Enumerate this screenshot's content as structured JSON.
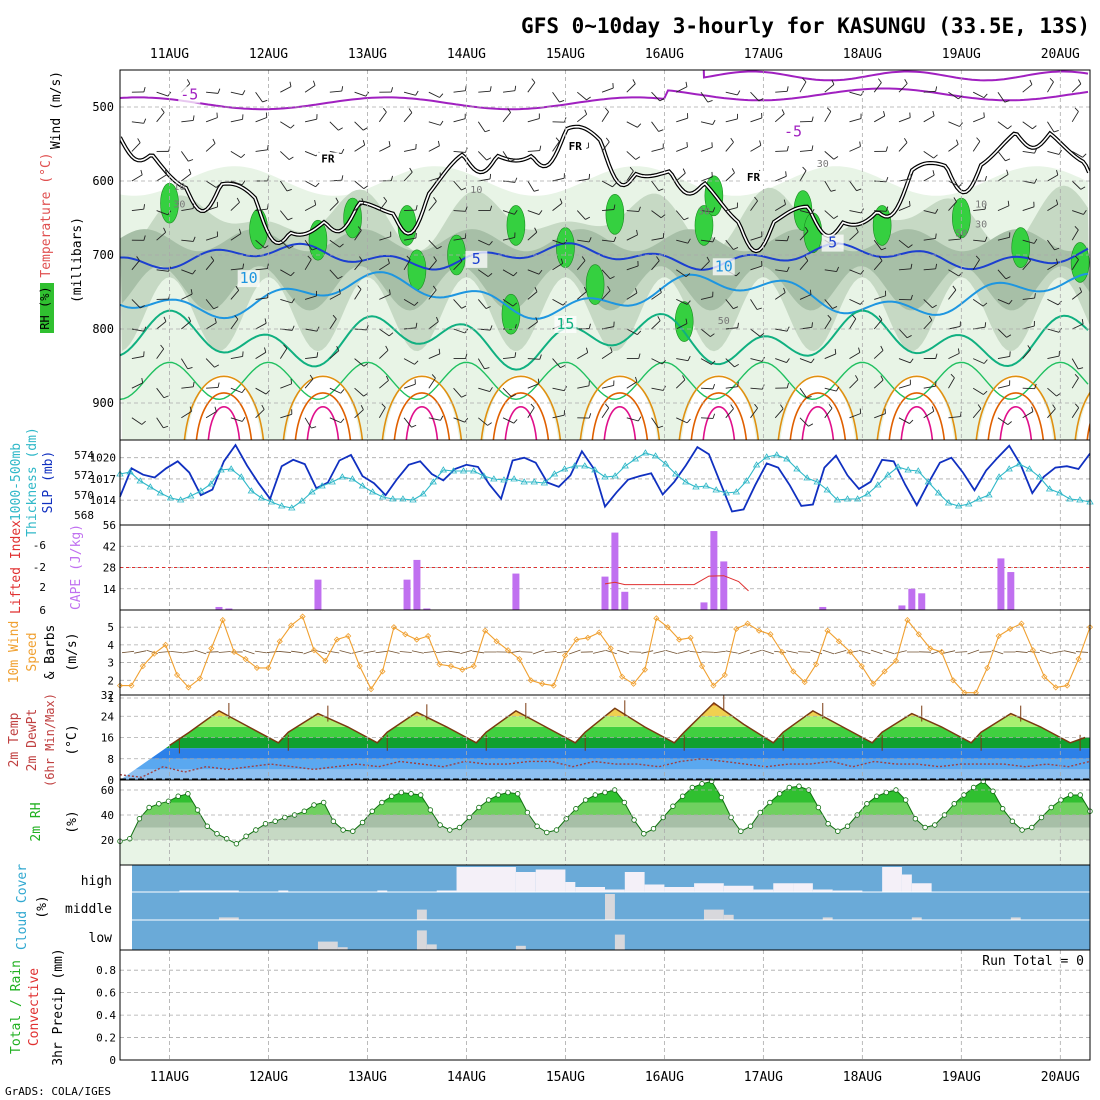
{
  "title": "GFS 0~10day 3-hourly for KASUNGU (33.5E, 13S)",
  "footer": "GrADS: COLA/IGES",
  "dates": [
    "11AUG",
    "12AUG",
    "13AUG",
    "14AUG",
    "15AUG",
    "16AUG",
    "17AUG",
    "18AUG",
    "19AUG",
    "20AUG"
  ],
  "colors": {
    "purple": "#a020c0",
    "blue": "#1c3fd0",
    "lightblue": "#1e96e0",
    "teal": "#10b080",
    "orange": "#e09010",
    "darkorange": "#e06000",
    "magenta": "#e0108c",
    "cyan": "#30b8c8",
    "navy": "#1030c0",
    "cape": "#c070f0",
    "wind": "#f0a030",
    "cloud": "#6aaad8",
    "green": "#30c030"
  },
  "chart_data": [
    {
      "type": "contour",
      "panel": "upper-air",
      "ylabel_parts": [
        "Wind (m/s)",
        "Temperature (°C)",
        "RH (%)",
        "(millibars)"
      ],
      "y_ticks": [
        500,
        600,
        700,
        800,
        900
      ],
      "ylim": [
        1000,
        450
      ],
      "isotherm_labels": [
        {
          "text": "-5",
          "color": "purple",
          "date": "11.2AUG",
          "p": 490
        },
        {
          "text": "-5",
          "color": "purple",
          "date": "17.3AUG",
          "p": 540
        },
        {
          "text": "5",
          "color": "blue",
          "date": "14.1AUG",
          "p": 712
        },
        {
          "text": "5",
          "color": "blue",
          "date": "17.7AUG",
          "p": 690
        },
        {
          "text": "10",
          "color": "lightblue",
          "date": "11.8AUG",
          "p": 738
        },
        {
          "text": "10",
          "color": "lightblue",
          "date": "16.6AUG",
          "p": 722
        },
        {
          "text": "15",
          "color": "teal",
          "date": "15.0AUG",
          "p": 800
        }
      ],
      "freezing_labels": [
        {
          "text": "FR",
          "date": "12.6AUG",
          "p": 575
        },
        {
          "text": "FR",
          "date": "15.1AUG",
          "p": 558
        },
        {
          "text": "FR",
          "date": "16.9AUG",
          "p": 600
        }
      ],
      "rh_labels": [
        {
          "text": "10",
          "date": "11.1AUG",
          "p": 612
        },
        {
          "text": "30",
          "date": "11.1AUG",
          "p": 636
        },
        {
          "text": "10",
          "date": "14.1AUG",
          "p": 616
        },
        {
          "text": "30",
          "date": "16.4AUG",
          "p": 645
        },
        {
          "text": "30",
          "date": "17.6AUG",
          "p": 581
        },
        {
          "text": "50",
          "date": "16.6AUG",
          "p": 793
        },
        {
          "text": "10",
          "date": "19.2AUG",
          "p": 636
        },
        {
          "text": "30",
          "date": "19.2AUG",
          "p": 663
        },
        {
          "text": "50",
          "date": "19.0AUG",
          "p": 675
        }
      ]
    },
    {
      "type": "line",
      "panel": "thickness-slp",
      "ylabel_left": "1000-500mb Thickness (dm)",
      "ylabel_right": "SLP (mb)",
      "left_ticks": [
        568,
        570,
        572,
        574
      ],
      "left_range": [
        567,
        575.5
      ],
      "right_ticks": [
        1014,
        1017,
        1020
      ],
      "right_range": [
        1010.5,
        1022.5
      ],
      "series": [
        {
          "axis": "right",
          "color": "navy",
          "values": [
            1014.5,
            1018.5,
            1017.6,
            1017.2,
            1018.5,
            1019.5,
            1017.9,
            1014.7,
            1015.5,
            1019.5,
            1021.8,
            1018.9,
            1016.4,
            1014.2,
            1018.8,
            1019.7,
            1019.1,
            1015.7,
            1016.5,
            1019.6,
            1020.4,
            1017.4,
            1016.4,
            1014.7,
            1017.0,
            1019.0,
            1019.5,
            1017.7,
            1016.8,
            1018.4,
            1019.0,
            1018.7,
            1016.2,
            1014.2,
            1019.6,
            1020.0,
            1019.3,
            1016.5,
            1015.9,
            1017.5,
            1020.9,
            1018.5,
            1013.1,
            1015.1,
            1016.9,
            1017.4,
            1017.8,
            1014.8,
            1016.6,
            1018.9,
            1021.5,
            1020.5,
            1016.4,
            1012.4,
            1012.7,
            1016.1,
            1019.2,
            1018.6,
            1016.1,
            1013.2,
            1013.4,
            1018.6,
            1020.3,
            1017.5,
            1015.6,
            1016.6,
            1019.7,
            1019.5,
            1016.2,
            1013.3,
            1016.4,
            1019.3,
            1020.0,
            1017.9,
            1015.4,
            1018.2,
            1020.0,
            1021.7,
            1019.0,
            1015.0,
            1017.3,
            1018.6,
            1018.8,
            1018.4,
            1020.6
          ]
        },
        {
          "axis": "left",
          "color": "cyan",
          "markers": "triangle",
          "values": [
            572.1,
            572.3,
            571.4,
            570.8,
            570.2,
            569.7,
            569.5,
            569.9,
            570.4,
            571.1,
            572.5,
            572.6,
            571.8,
            570.4,
            569.7,
            569.3,
            568.9,
            568.7,
            569.4,
            570.3,
            570.9,
            571.3,
            571.8,
            571.6,
            570.9,
            570.3,
            569.8,
            569.6,
            569.6,
            569.5,
            570.1,
            571.3,
            572.5,
            572.4,
            572.4,
            572.4,
            571.9,
            571.6,
            571.5,
            571.6,
            571.3,
            571.3,
            571.2,
            572.1,
            572.6,
            572.9,
            572.9,
            572.5,
            571.8,
            571.9,
            572.9,
            573.6,
            574.2,
            573.9,
            573.1,
            572.1,
            571.3,
            570.8,
            570.9,
            570.5,
            570.2,
            570.3,
            571.4,
            573.0,
            573.8,
            574.0,
            573.6,
            572.6,
            571.7,
            571.3,
            570.5,
            569.5,
            569.6,
            569.6,
            570.1,
            571.0,
            572.0,
            572.8,
            572.5,
            572.4,
            571.3,
            570.2,
            569.2,
            568.9,
            569.1,
            569.6,
            570.0,
            571.8,
            572.6,
            573.1,
            572.6,
            571.8,
            570.6,
            570.2,
            569.6,
            569.5,
            569.3
          ]
        }
      ]
    },
    {
      "type": "bar",
      "panel": "cape-li",
      "ylabel_left": "Lifted Index",
      "ylabel_right": "CAPE (J/kg)",
      "left_ticks": [
        6,
        2,
        -2,
        -6
      ],
      "right_ticks": [
        14,
        28,
        42,
        56
      ],
      "right_range": [
        0,
        56
      ],
      "cape_bars": [
        {
          "x": 11.5,
          "v": 2
        },
        {
          "x": 11.6,
          "v": 1
        },
        {
          "x": 12.5,
          "v": 20
        },
        {
          "x": 13.4,
          "v": 20
        },
        {
          "x": 13.5,
          "v": 33
        },
        {
          "x": 13.6,
          "v": 1
        },
        {
          "x": 14.5,
          "v": 24
        },
        {
          "x": 15.4,
          "v": 22
        },
        {
          "x": 15.5,
          "v": 51
        },
        {
          "x": 15.6,
          "v": 12
        },
        {
          "x": 16.4,
          "v": 5
        },
        {
          "x": 16.5,
          "v": 52
        },
        {
          "x": 16.6,
          "v": 32
        },
        {
          "x": 17.6,
          "v": 2
        },
        {
          "x": 18.4,
          "v": 3
        },
        {
          "x": 18.5,
          "v": 14
        },
        {
          "x": 18.6,
          "v": 11
        },
        {
          "x": 19.4,
          "v": 34
        },
        {
          "x": 19.5,
          "v": 25
        }
      ],
      "li_line": [
        [
          15.4,
          4.2
        ],
        [
          15.5,
          3.8
        ],
        [
          15.6,
          4.4
        ],
        [
          16.3,
          4.4
        ],
        [
          16.45,
          2.2
        ],
        [
          16.6,
          2.1
        ],
        [
          16.75,
          3.6
        ],
        [
          16.85,
          6.0
        ]
      ]
    },
    {
      "type": "line",
      "panel": "wind10m",
      "ylabel_lines": [
        "10m Wind",
        "Speed",
        "& Barbs",
        "(m/s)"
      ],
      "y_ticks": [
        1,
        2,
        3,
        4,
        5
      ],
      "ylim": [
        1,
        5.8
      ],
      "series": [
        {
          "color": "wind",
          "markers": "diamond",
          "values": [
            1.7,
            1.7,
            2.8,
            3.5,
            4.0,
            2.3,
            1.6,
            2.1,
            3.8,
            5.4,
            3.6,
            3.2,
            2.7,
            2.7,
            4.2,
            5.1,
            5.6,
            3.7,
            3.1,
            4.3,
            4.5,
            2.8,
            1.5,
            2.5,
            5.0,
            4.6,
            4.3,
            4.5,
            2.9,
            2.8,
            2.6,
            2.8,
            4.8,
            4.2,
            3.7,
            3.2,
            2.0,
            1.8,
            1.7,
            3.4,
            4.3,
            4.4,
            4.7,
            3.8,
            2.2,
            1.8,
            2.6,
            5.5,
            5.0,
            4.3,
            4.4,
            2.8,
            1.7,
            2.3,
            4.9,
            5.2,
            4.8,
            4.6,
            3.6,
            2.5,
            1.9,
            2.9,
            4.8,
            4.2,
            3.6,
            2.8,
            1.8,
            2.5,
            3.1,
            5.4,
            4.6,
            3.8,
            3.6,
            2.0,
            1.3,
            1.3,
            2.7,
            4.5,
            4.9,
            5.2,
            3.7,
            2.2,
            1.6,
            1.7,
            3.2,
            5.0
          ]
        }
      ]
    },
    {
      "type": "area",
      "panel": "temp2m",
      "ylabel_lines": [
        "2m Temp",
        "2m DewPt",
        "(6hr Min/Max)",
        "(°C)"
      ],
      "y_ticks": [
        0,
        8,
        16,
        24,
        32
      ],
      "ylim": [
        0,
        32
      ],
      "temperature_max": [
        [
          11.0,
          13
        ],
        [
          11.2,
          18
        ],
        [
          11.5,
          26
        ],
        [
          11.8,
          20
        ],
        [
          12.1,
          14
        ],
        [
          12.2,
          18
        ],
        [
          12.5,
          25
        ],
        [
          12.8,
          20
        ],
        [
          13.1,
          14
        ],
        [
          13.2,
          18
        ],
        [
          13.5,
          25.5
        ],
        [
          13.8,
          20
        ],
        [
          14.1,
          14
        ],
        [
          14.2,
          18
        ],
        [
          14.5,
          26
        ],
        [
          14.8,
          20
        ],
        [
          15.1,
          14
        ],
        [
          15.2,
          18
        ],
        [
          15.5,
          27
        ],
        [
          15.8,
          20
        ],
        [
          16.1,
          14
        ],
        [
          16.2,
          18
        ],
        [
          16.5,
          29
        ],
        [
          16.8,
          21
        ],
        [
          17.1,
          14
        ],
        [
          17.2,
          18
        ],
        [
          17.5,
          26
        ],
        [
          17.8,
          20
        ],
        [
          18.1,
          14
        ],
        [
          18.2,
          18
        ],
        [
          18.5,
          25
        ],
        [
          18.8,
          20
        ],
        [
          19.1,
          14
        ],
        [
          19.2,
          18
        ],
        [
          19.5,
          25
        ],
        [
          19.8,
          20
        ],
        [
          20.1,
          14
        ],
        [
          20.25,
          16
        ]
      ],
      "dewpoint": [
        2,
        1,
        5,
        3,
        5,
        4,
        5,
        6,
        5,
        4,
        5,
        6,
        5,
        7,
        6,
        5,
        7,
        6,
        6,
        7,
        7,
        5,
        7,
        6,
        6,
        5,
        7,
        8,
        7,
        6,
        5,
        6,
        6,
        7,
        5,
        7,
        6,
        6,
        5,
        6,
        6,
        6,
        5,
        6,
        5,
        7
      ],
      "bands": [
        {
          "min": 0,
          "max": 4,
          "color": "#8ec0f0"
        },
        {
          "min": 4,
          "max": 8,
          "color": "#5aa8f0"
        },
        {
          "min": 8,
          "max": 12,
          "color": "#2c80e8"
        },
        {
          "min": 12,
          "max": 16,
          "color": "#10a030"
        },
        {
          "min": 16,
          "max": 20,
          "color": "#40d040"
        },
        {
          "min": 20,
          "max": 24,
          "color": "#a8f070"
        },
        {
          "min": 24,
          "max": 28,
          "color": "#f0d050"
        },
        {
          "min": 28,
          "max": 32,
          "color": "#f08010"
        }
      ]
    },
    {
      "type": "area",
      "panel": "rh2m",
      "ylabel_lines": [
        "2m RH",
        "(%)"
      ],
      "y_ticks": [
        20,
        40,
        60
      ],
      "ylim": [
        0,
        68
      ],
      "series": [
        {
          "markers": "circle",
          "values": [
            19,
            21,
            37,
            46,
            49,
            51,
            55,
            57,
            44,
            31,
            25,
            21,
            17,
            23,
            28,
            33,
            35,
            38,
            40,
            43,
            48,
            50,
            35,
            28,
            27,
            34,
            43,
            50,
            55,
            58,
            57,
            56,
            44,
            32,
            28,
            30,
            38,
            46,
            52,
            56,
            58,
            57,
            42,
            31,
            26,
            28,
            37,
            45,
            52,
            56,
            58,
            60,
            50,
            36,
            25,
            29,
            38,
            47,
            55,
            62,
            65,
            67,
            54,
            38,
            27,
            31,
            42,
            50,
            57,
            62,
            63,
            60,
            46,
            33,
            27,
            31,
            40,
            49,
            55,
            58,
            60,
            52,
            37,
            30,
            32,
            40,
            49,
            56,
            62,
            67,
            59,
            45,
            35,
            28,
            30,
            38,
            46,
            52,
            56,
            56,
            43
          ]
        }
      ]
    },
    {
      "type": "bar",
      "panel": "cloud",
      "ylabel": "Cloud Cover (%)",
      "categories": [
        "high",
        "middle",
        "low"
      ],
      "high_blocks": [
        [
          11.1,
          11.7,
          2
        ],
        [
          12.1,
          12.2,
          2
        ],
        [
          13.1,
          13.2,
          2
        ],
        [
          13.7,
          13.9,
          2
        ],
        [
          13.9,
          14.5,
          100
        ],
        [
          14.5,
          14.7,
          80
        ],
        [
          14.7,
          15.0,
          90
        ],
        [
          15.0,
          15.1,
          40
        ],
        [
          15.1,
          15.4,
          20
        ],
        [
          15.4,
          15.6,
          10
        ],
        [
          15.6,
          15.8,
          80
        ],
        [
          15.8,
          16.0,
          30
        ],
        [
          16.0,
          16.3,
          20
        ],
        [
          16.3,
          16.6,
          35
        ],
        [
          16.6,
          16.9,
          25
        ],
        [
          16.9,
          17.1,
          10
        ],
        [
          17.1,
          17.3,
          35
        ],
        [
          17.3,
          17.5,
          35
        ],
        [
          17.5,
          17.7,
          10
        ],
        [
          17.7,
          18.0,
          5
        ],
        [
          18.2,
          18.4,
          100
        ],
        [
          18.4,
          18.5,
          70
        ],
        [
          18.5,
          18.7,
          35
        ]
      ],
      "middle_blocks": [
        [
          11.5,
          11.7,
          10
        ],
        [
          13.5,
          13.6,
          40
        ],
        [
          15.4,
          15.5,
          100
        ],
        [
          16.4,
          16.6,
          40
        ],
        [
          16.6,
          16.7,
          20
        ],
        [
          17.6,
          17.7,
          10
        ],
        [
          18.5,
          18.6,
          10
        ],
        [
          19.5,
          19.6,
          10
        ]
      ],
      "low_blocks": [
        [
          12.5,
          12.7,
          30
        ],
        [
          12.7,
          12.8,
          10
        ],
        [
          13.5,
          13.6,
          70
        ],
        [
          13.6,
          13.7,
          20
        ],
        [
          14.5,
          14.6,
          15
        ],
        [
          15.5,
          15.6,
          55
        ]
      ]
    },
    {
      "type": "bar",
      "panel": "precip",
      "ylabel_right_lines": [
        "3hr Precip (mm)"
      ],
      "ylabel_left_lines": [
        "Total / Rain",
        "Convective"
      ],
      "y_ticks": [
        0,
        0.2,
        0.4,
        0.6,
        0.8
      ],
      "ylim": [
        0,
        0.98
      ],
      "run_total": "Run Total = 0",
      "values": []
    }
  ]
}
